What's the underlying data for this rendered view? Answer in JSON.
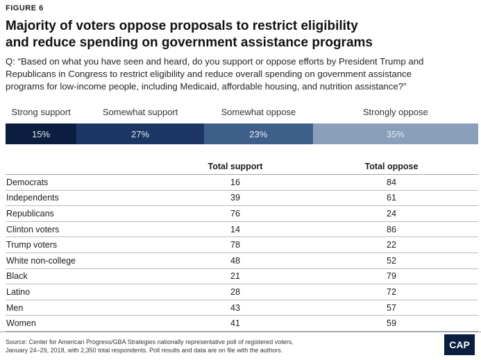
{
  "figure_label": "FIGURE 6",
  "title_line1": "Majority of voters oppose proposals to restrict eligibility",
  "title_line2": "and reduce spending on government assistance programs",
  "question_line1": "Q: “Based on what you have seen and heard, do you support or oppose efforts by President Trump and",
  "question_line2": "Republicans in Congress to restrict eligibility and reduce overall spending on government assistance",
  "question_line3": "programs for low-income people, including Medicaid, affordable housing, and nutrition assistance?”",
  "chart_data": [
    {
      "type": "bar",
      "stacked": true,
      "categories": [
        "Strong support",
        "Somewhat support",
        "Somewhat oppose",
        "Strongly oppose"
      ],
      "values": [
        15,
        27,
        23,
        35
      ],
      "value_labels": [
        "15%",
        "27%",
        "23%",
        "35%"
      ],
      "colors": [
        "#0b1e3f",
        "#1b3664",
        "#3e5f8a",
        "#8a9fb9"
      ],
      "unit": "%"
    },
    {
      "type": "table",
      "columns": [
        "",
        "Total support",
        "Total oppose"
      ],
      "rows": [
        {
          "group": "Democrats",
          "support": 16,
          "oppose": 84
        },
        {
          "group": "Independents",
          "support": 39,
          "oppose": 61
        },
        {
          "group": "Republicans",
          "support": 76,
          "oppose": 24
        },
        {
          "group": "Clinton voters",
          "support": 14,
          "oppose": 86
        },
        {
          "group": "Trump voters",
          "support": 78,
          "oppose": 22
        },
        {
          "group": "White non-college",
          "support": 48,
          "oppose": 52
        },
        {
          "group": "Black",
          "support": 21,
          "oppose": 79
        },
        {
          "group": "Latino",
          "support": 28,
          "oppose": 72
        },
        {
          "group": "Men",
          "support": 43,
          "oppose": 57
        },
        {
          "group": "Women",
          "support": 41,
          "oppose": 59
        }
      ]
    }
  ],
  "source_line1": "Source: Center for American Progress/GBA Strategies nationally representative poll of registered voters,",
  "source_line2": "January 24–29, 2018, with 2,350 total respondents. Poll results and data are on file with the authors.",
  "logo_text": "CAP"
}
